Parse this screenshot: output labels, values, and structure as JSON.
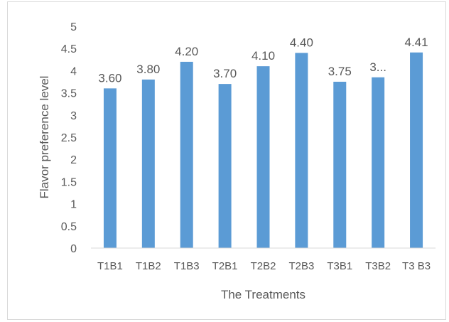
{
  "chart_data": {
    "type": "bar",
    "title": "",
    "xlabel": "The Treatments",
    "ylabel": "Flavor preference level",
    "ylim": [
      0,
      5
    ],
    "ytick_step": 0.5,
    "yticks": [
      "0",
      "0.5",
      "1",
      "1.5",
      "2",
      "2.5",
      "3",
      "3.5",
      "4",
      "4.5",
      "5"
    ],
    "grid": false,
    "legend": "none",
    "bar_color": "#5b9bd5",
    "categories": [
      "T1B1",
      "T1B2",
      "T1B3",
      "T2B1",
      "T2B2",
      "T2B3",
      "T3B1",
      "T3B2",
      "T3 B3"
    ],
    "values": [
      3.6,
      3.8,
      4.2,
      3.7,
      4.1,
      4.4,
      3.75,
      3.85,
      4.41
    ],
    "data_labels": [
      "3.60",
      "3.80",
      "4.20",
      "3.70",
      "4.10",
      "4.40",
      "3.75",
      "3...",
      "4.41"
    ]
  }
}
